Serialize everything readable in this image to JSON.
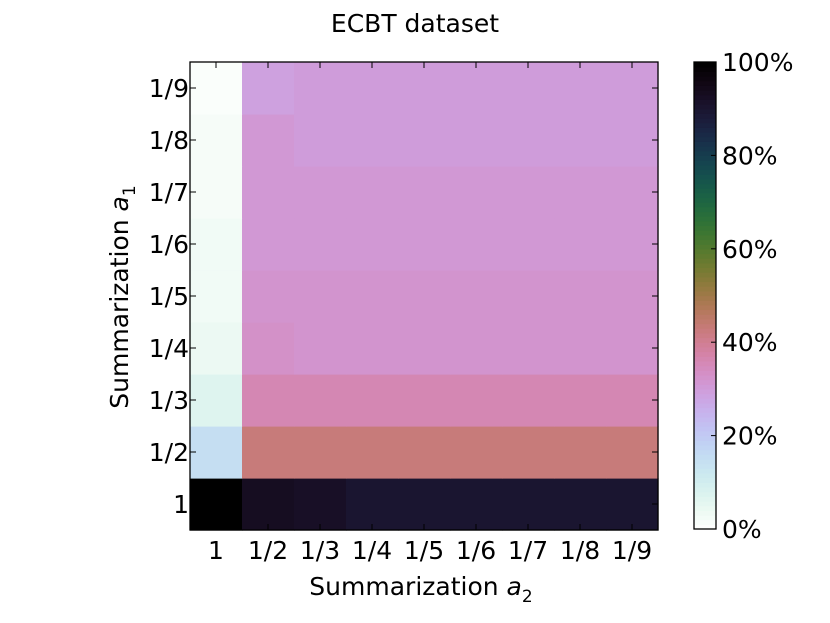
{
  "chart_data": {
    "type": "heatmap",
    "title": "ECBT dataset",
    "xlabel": {
      "main": "Summarization ",
      "var": "a",
      "sub": "2"
    },
    "ylabel": {
      "main": "Summarization ",
      "var": "a",
      "sub": "1"
    },
    "x_categories": [
      "1",
      "1/2",
      "1/3",
      "1/4",
      "1/5",
      "1/6",
      "1/7",
      "1/8",
      "1/9"
    ],
    "y_categories": [
      "1",
      "1/2",
      "1/3",
      "1/4",
      "1/5",
      "1/6",
      "1/7",
      "1/8",
      "1/9"
    ],
    "values": [
      [
        100,
        93,
        92,
        90,
        90,
        90,
        90,
        90,
        90
      ],
      [
        15,
        43,
        43,
        43,
        43,
        43,
        43,
        43,
        43
      ],
      [
        7,
        36,
        36,
        36,
        36,
        36,
        36,
        36,
        36
      ],
      [
        4,
        33,
        32,
        32,
        32,
        32,
        32,
        32,
        32
      ],
      [
        3,
        32,
        32,
        32,
        32,
        32,
        32,
        32,
        32
      ],
      [
        3,
        31,
        31,
        31,
        31,
        31,
        31,
        31,
        31
      ],
      [
        2,
        31,
        31,
        31,
        31,
        31,
        31,
        31,
        31
      ],
      [
        2,
        31,
        30,
        30,
        30,
        30,
        30,
        30,
        30
      ],
      [
        1,
        29,
        30,
        30,
        30,
        30,
        30,
        30,
        30
      ]
    ],
    "value_range": [
      0,
      100
    ],
    "colorbar": {
      "ticks": [
        0,
        20,
        40,
        60,
        80,
        100
      ],
      "tick_labels": [
        "0%",
        "20%",
        "40%",
        "60%",
        "80%",
        "100%"
      ],
      "colormap": "cubehelix_r"
    },
    "grid": false
  }
}
